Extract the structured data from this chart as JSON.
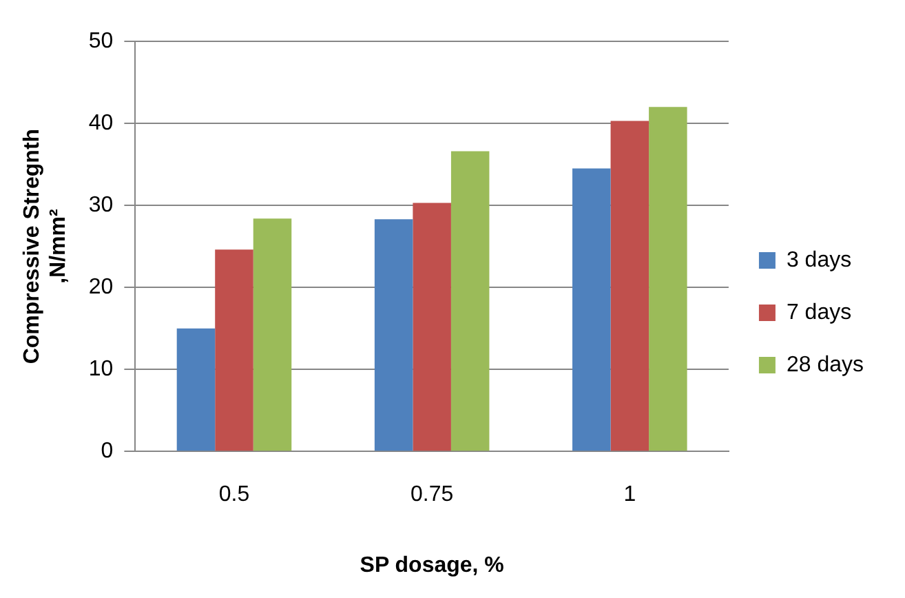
{
  "chart_data": {
    "type": "bar",
    "xlabel": "SP dosage, %",
    "ylabel": "Compressive Stregnth\n,N/mm²",
    "categories": [
      "0.5",
      "0.75",
      "1"
    ],
    "series": [
      {
        "name": "3 days",
        "color": "#4f81bd",
        "values": [
          15,
          28.3,
          34.5
        ]
      },
      {
        "name": "7 days",
        "color": "#c0504d",
        "values": [
          24.6,
          30.3,
          40.3
        ]
      },
      {
        "name": "28 days",
        "color": "#9bbb59",
        "values": [
          28.4,
          36.6,
          42
        ]
      }
    ],
    "ylim": [
      0,
      50
    ],
    "yticks": [
      0,
      10,
      20,
      30,
      40,
      50
    ],
    "grid": "y",
    "legend": "right"
  }
}
